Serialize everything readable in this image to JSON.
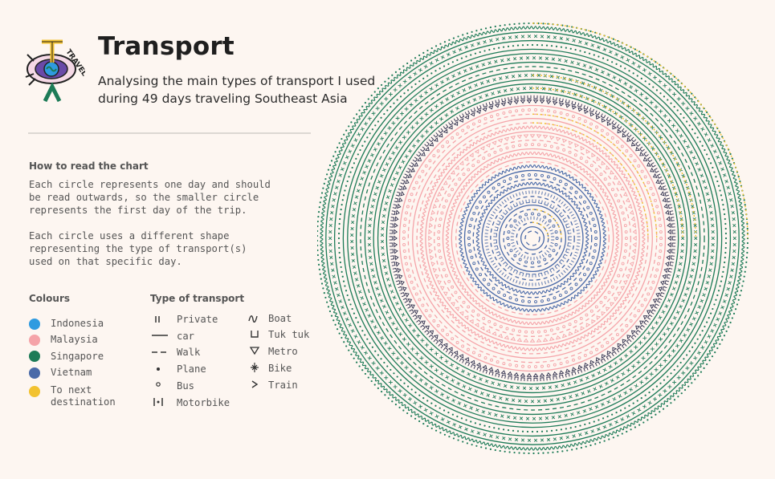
{
  "logo": {
    "word": "TRAVEL"
  },
  "header": {
    "title": "Transport",
    "subtitle_line1": "Analysing the main types of transport I used",
    "subtitle_line2": "during 49 days traveling Southeast Asia"
  },
  "how_to": {
    "heading": "How to read the chart",
    "p1": [
      "Each circle represents one day and should",
      "be read outwards, so the smaller circle",
      "represents the first day of the trip."
    ],
    "p2": [
      "Each circle uses a different shape",
      "representing the type of transport(s)",
      "used on that specific day."
    ]
  },
  "colours": {
    "heading": "Colours",
    "items": [
      {
        "label": "Indonesia",
        "color": "#2f9be0"
      },
      {
        "label": "Malaysia",
        "color": "#f5a3a8"
      },
      {
        "label": "Singapore",
        "color": "#1d7b57"
      },
      {
        "label": "Vietnam",
        "color": "#4a6aa8"
      },
      {
        "label_line1": "To next",
        "label_line2": "destination",
        "color": "#f2c230"
      }
    ]
  },
  "transport": {
    "heading": "Type of transport",
    "col1": [
      {
        "label": "Private",
        "icon": "double-tick"
      },
      {
        "label": "car",
        "icon": "solid-line"
      },
      {
        "label": "Walk",
        "icon": "dashed-line"
      },
      {
        "label": "Plane",
        "icon": "dot"
      },
      {
        "label": "Bus",
        "icon": "small-circle"
      },
      {
        "label": "Motorbike",
        "icon": "bracket-dot"
      }
    ],
    "col2": [
      {
        "label": "Boat",
        "icon": "wave"
      },
      {
        "label": "Tuk tuk",
        "icon": "cup"
      },
      {
        "label": "Metro",
        "icon": "triangle"
      },
      {
        "label": "Bike",
        "icon": "cross-star"
      },
      {
        "label": "Train",
        "icon": "chevron"
      }
    ]
  },
  "chart_data": {
    "type": "radial-rings",
    "days": 49,
    "reading": "one ring per day, innermost = day 1",
    "rings": [
      {
        "day": 1,
        "color": "#4a6aa8",
        "transport": "walk"
      },
      {
        "day": 2,
        "color": "#4a6aa8",
        "transport": "car"
      },
      {
        "day": 3,
        "color": "#4a6aa8",
        "transport": "walk",
        "transfer": true
      },
      {
        "day": 4,
        "color": "#4a6aa8",
        "transport": "motorbike"
      },
      {
        "day": 5,
        "color": "#4a6aa8",
        "transport": "bus"
      },
      {
        "day": 6,
        "color": "#4a6aa8",
        "transport": "walk",
        "transfer": true
      },
      {
        "day": 7,
        "color": "#4a6aa8",
        "transport": "car"
      },
      {
        "day": 8,
        "color": "#4a6aa8",
        "transport": "tuk tuk"
      },
      {
        "day": 9,
        "color": "#4a6aa8",
        "transport": "walk"
      },
      {
        "day": 10,
        "color": "#4a6aa8",
        "transport": "motorbike"
      },
      {
        "day": 11,
        "color": "#4a6aa8",
        "transport": "car"
      },
      {
        "day": 12,
        "color": "#4a6aa8",
        "transport": "boat"
      },
      {
        "day": 13,
        "color": "#4a6aa8",
        "transport": "walk"
      },
      {
        "day": 14,
        "color": "#4a6aa8",
        "transport": "bus"
      },
      {
        "day": 15,
        "color": "#4a6aa8",
        "transport": "car"
      },
      {
        "day": 16,
        "color": "#4a6aa8",
        "transport": "boat"
      },
      {
        "day": 17,
        "color": "#f5a3a8",
        "transport": "walk"
      },
      {
        "day": 18,
        "color": "#f5a3a8",
        "transport": "car"
      },
      {
        "day": 19,
        "color": "#f5a3a8",
        "transport": "boat"
      },
      {
        "day": 20,
        "color": "#f5a3a8",
        "transport": "car"
      },
      {
        "day": 21,
        "color": "#f5a3a8",
        "transport": "bus"
      },
      {
        "day": 22,
        "color": "#f5a3a8",
        "transport": "walk"
      },
      {
        "day": 23,
        "color": "#f5a3a8",
        "transport": "metro"
      },
      {
        "day": 24,
        "color": "#f5a3a8",
        "transport": "car"
      },
      {
        "day": 25,
        "color": "#f5a3a8",
        "transport": "boat"
      },
      {
        "day": 26,
        "color": "#f5a3a8",
        "transport": "walk",
        "transfer": true
      },
      {
        "day": 27,
        "color": "#f5a3a8",
        "transport": "car"
      },
      {
        "day": 28,
        "color": "#f5a3a8",
        "transport": "walk",
        "transfer": true
      },
      {
        "day": 29,
        "color": "#f5a3a8",
        "transport": "bus"
      },
      {
        "day": 30,
        "color": "#f5a3a8",
        "transport": "car"
      },
      {
        "day": 31,
        "color": "#2b2b4a",
        "transport": "metro"
      },
      {
        "day": 32,
        "color": "#2b2b4a",
        "transport": "tuk tuk"
      },
      {
        "day": 33,
        "color": "#1d7b57",
        "transport": "car"
      },
      {
        "day": 34,
        "color": "#1d7b57",
        "transport": "bike",
        "transfer": true
      },
      {
        "day": 35,
        "color": "#1d7b57",
        "transport": "car"
      },
      {
        "day": 36,
        "color": "#1d7b57",
        "transport": "car"
      },
      {
        "day": 37,
        "color": "#1d7b57",
        "transport": "bike",
        "transfer": true
      },
      {
        "day": 38,
        "color": "#1d7b57",
        "transport": "car"
      },
      {
        "day": 39,
        "color": "#1d7b57",
        "transport": "walk"
      },
      {
        "day": 40,
        "color": "#1d7b57",
        "transport": "car"
      },
      {
        "day": 41,
        "color": "#1d7b57",
        "transport": "bike"
      },
      {
        "day": 42,
        "color": "#1d7b57",
        "transport": "car"
      },
      {
        "day": 43,
        "color": "#1d7b57",
        "transport": "car"
      },
      {
        "day": 44,
        "color": "#1d7b57",
        "transport": "plane"
      },
      {
        "day": 45,
        "color": "#1d7b57",
        "transport": "car"
      },
      {
        "day": 46,
        "color": "#1d7b57",
        "transport": "bike"
      },
      {
        "day": 47,
        "color": "#1d7b57",
        "transport": "car"
      },
      {
        "day": 48,
        "color": "#1d7b57",
        "transport": "boat"
      },
      {
        "day": 49,
        "color": "#1d7b57",
        "transport": "plane",
        "transfer": true
      }
    ],
    "transfer_color": "#f2c230"
  }
}
